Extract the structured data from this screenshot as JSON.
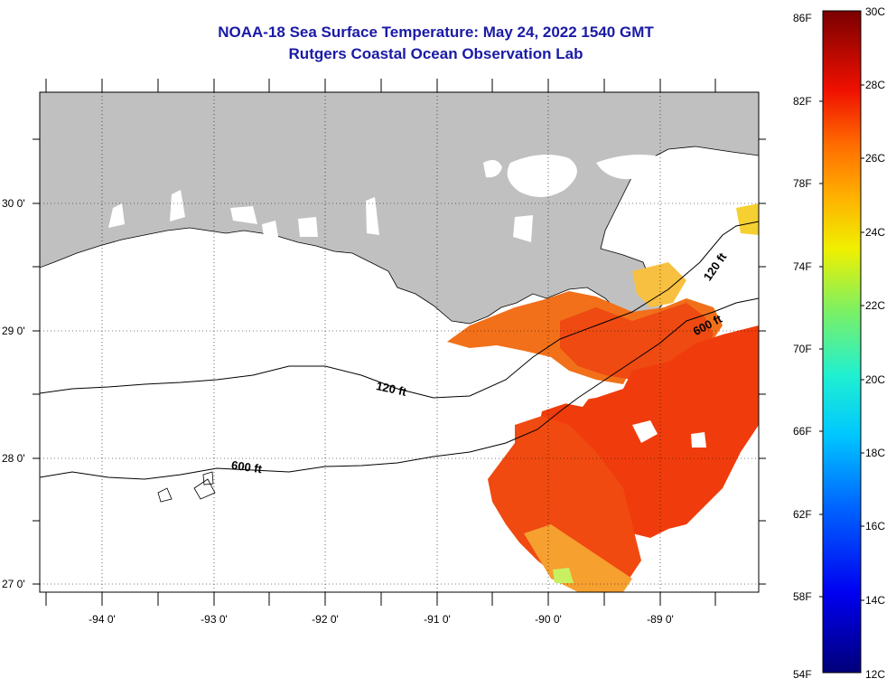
{
  "title": "NOAA-18 Sea Surface Temperature:  May 24, 2022 1540 GMT",
  "subtitle": "Rutgers Coastal Ocean Observation Lab",
  "lat_labels": [
    "30 0'",
    "29 0'",
    "28 0'",
    "27 0'"
  ],
  "lon_labels": [
    "-94 0'",
    "-93 0'",
    "-92 0'",
    "-91 0'",
    "-90 0'",
    "-89 0'"
  ],
  "contour_labels": [
    "120 ft",
    "600 ft",
    "120 ft",
    "600 ft"
  ],
  "colorbar": {
    "f_labels": [
      "86F",
      "82F",
      "78F",
      "74F",
      "70F",
      "66F",
      "62F",
      "58F",
      "54F"
    ],
    "c_labels": [
      "30C",
      "28C",
      "26C",
      "24C",
      "22C",
      "20C",
      "18C",
      "16C",
      "14C",
      "12C"
    ]
  },
  "colors": {
    "land": "#c0c0c0",
    "title": "#1a1aa6",
    "sst_warm": "#f03a0a",
    "sst_mid": "#f2660e"
  },
  "map_extent": {
    "lon_min": -94.5,
    "lon_max": -88.0,
    "lat_min": 26.95,
    "lat_max": 30.85
  }
}
